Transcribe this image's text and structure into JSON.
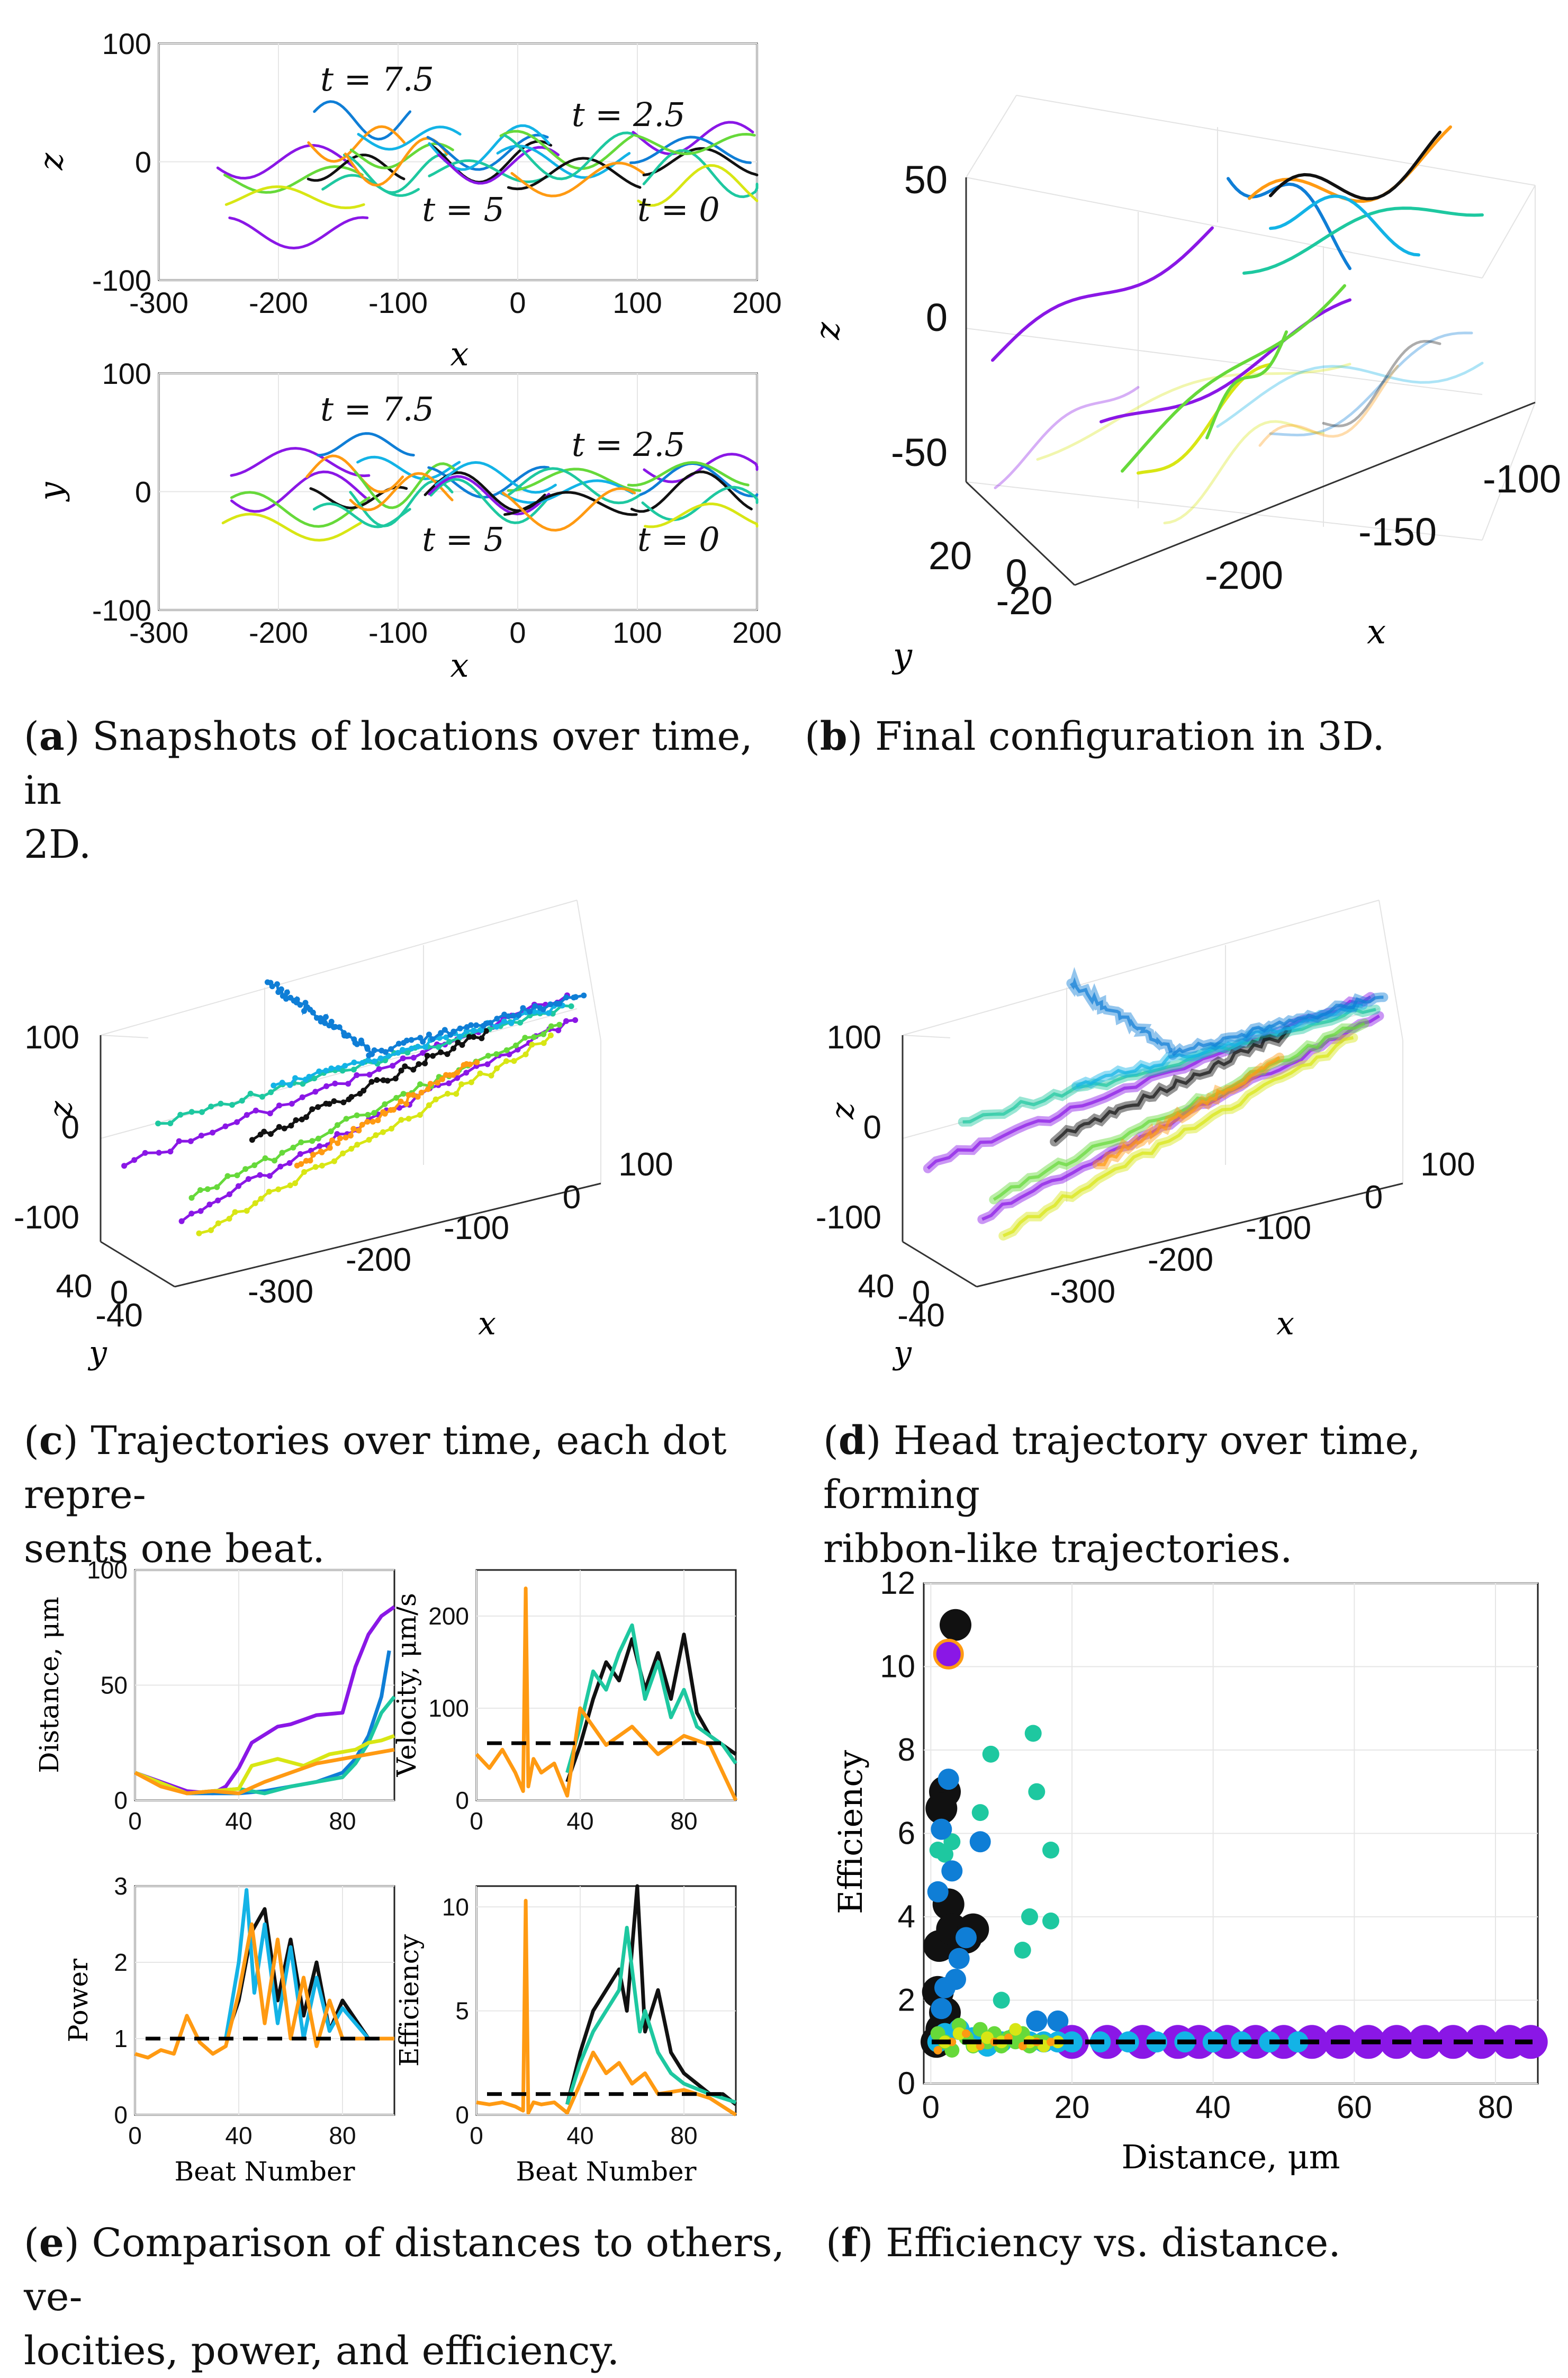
{
  "colors": {
    "purple": "#8a17e6",
    "blue": "#0f7ed6",
    "cyan": "#13b3e6",
    "teal": "#1ec8a0",
    "green": "#66d93a",
    "yellow": "#d8e614",
    "orange": "#ff9a12",
    "black": "#111111",
    "grid": "#e6e6e6",
    "axis": "#222222"
  },
  "captions": {
    "a": {
      "letter": "a",
      "text": "Snapshots of locations over time, in",
      "text2": "2D."
    },
    "b": {
      "letter": "b",
      "text": "Final configuration in 3D."
    },
    "c": {
      "letter": "c",
      "text": "Trajectories over time, each dot repre-",
      "text2": "sents one beat."
    },
    "d": {
      "letter": "d",
      "text": "Head trajectory over time, forming",
      "text2": "ribbon-like trajectories."
    },
    "e": {
      "letter": "e",
      "text": "Comparison of distances to others, ve-",
      "text2": "locities, power, and efficiency."
    },
    "f": {
      "letter": "f",
      "text": "Efficiency vs. distance."
    }
  },
  "chart_data": [
    {
      "id": "a_top",
      "type": "line",
      "title": "",
      "xlabel": "x",
      "ylabel": "z",
      "xlim": [
        -300,
        200
      ],
      "ylim": [
        -100,
        100
      ],
      "xticks": [
        "-300",
        "-200",
        "-100",
        "0",
        "100",
        "200"
      ],
      "yticks": [
        "-100",
        "0",
        "100"
      ],
      "annotations": [
        {
          "text": "t = 7.5",
          "x": -165,
          "y": 70
        },
        {
          "text": "t = 2.5",
          "x": 45,
          "y": 40
        },
        {
          "text": "t = 5",
          "x": -80,
          "y": -40
        },
        {
          "text": "t = 0",
          "x": 100,
          "y": -40
        }
      ]
    },
    {
      "id": "a_bottom",
      "type": "line",
      "title": "",
      "xlabel": "x",
      "ylabel": "y",
      "xlim": [
        -300,
        200
      ],
      "ylim": [
        -100,
        100
      ],
      "xticks": [
        "-300",
        "-200",
        "-100",
        "0",
        "100",
        "200"
      ],
      "yticks": [
        "-100",
        "0",
        "100"
      ],
      "annotations": [
        {
          "text": "t = 7.5",
          "x": -165,
          "y": 70
        },
        {
          "text": "t = 2.5",
          "x": 45,
          "y": 40
        },
        {
          "text": "t = 5",
          "x": -80,
          "y": -40
        },
        {
          "text": "t = 0",
          "x": 100,
          "y": -40
        }
      ]
    },
    {
      "id": "b",
      "type": "line",
      "title": "",
      "xlabel": "x",
      "ylabel": "z",
      "y2label": "y",
      "xticks": [
        "-200",
        "-150",
        "-100"
      ],
      "zticks": [
        "50",
        "0",
        "-50"
      ],
      "yticks": [
        "20",
        "0",
        "-20"
      ]
    },
    {
      "id": "c",
      "type": "scatter",
      "title": "",
      "xlabel": "x",
      "ylabel": "z",
      "y2label": "y",
      "xticks": [
        "-300",
        "-200",
        "-100",
        "0",
        "100"
      ],
      "zticks": [
        "100",
        "0",
        "-100"
      ],
      "yticks": [
        "40",
        "0",
        "-40"
      ]
    },
    {
      "id": "d",
      "type": "line",
      "title": "",
      "xlabel": "x",
      "ylabel": "z",
      "y2label": "y",
      "xticks": [
        "-300",
        "-200",
        "-100",
        "0",
        "100"
      ],
      "zticks": [
        "100",
        "0",
        "-100"
      ],
      "yticks": [
        "40",
        "0",
        "-40"
      ]
    },
    {
      "id": "e_distance",
      "type": "line",
      "title": "",
      "xlabel": "",
      "ylabel": "Distance, μm",
      "xlim": [
        0,
        100
      ],
      "ylim": [
        0,
        100
      ],
      "xticks": [
        "0",
        "40",
        "80"
      ],
      "yticks": [
        "0",
        "50",
        "100"
      ],
      "series": [
        {
          "name": "purple",
          "x": [
            0,
            10,
            20,
            30,
            35,
            40,
            45,
            55,
            60,
            70,
            80,
            85,
            90,
            95,
            100
          ],
          "y": [
            12,
            8,
            4,
            3,
            6,
            14,
            25,
            32,
            33,
            37,
            38,
            58,
            72,
            80,
            84
          ]
        },
        {
          "name": "blue",
          "x": [
            0,
            20,
            40,
            50,
            60,
            70,
            80,
            85,
            90,
            95,
            98
          ],
          "y": [
            12,
            3,
            3,
            4,
            6,
            8,
            12,
            18,
            28,
            45,
            65
          ]
        },
        {
          "name": "teal",
          "x": [
            0,
            20,
            40,
            50,
            60,
            70,
            80,
            85,
            90,
            95,
            100
          ],
          "y": [
            12,
            3,
            5,
            3,
            6,
            8,
            10,
            16,
            25,
            38,
            45
          ]
        },
        {
          "name": "yellow",
          "x": [
            0,
            20,
            40,
            45,
            55,
            65,
            75,
            85,
            90,
            95,
            100
          ],
          "y": [
            12,
            3,
            5,
            15,
            18,
            15,
            20,
            22,
            25,
            26,
            28
          ]
        },
        {
          "name": "orange",
          "x": [
            0,
            10,
            20,
            30,
            40,
            50,
            60,
            70,
            80,
            90,
            100
          ],
          "y": [
            12,
            6,
            3,
            4,
            3,
            8,
            12,
            16,
            18,
            20,
            22
          ]
        }
      ],
      "reference_line": null
    },
    {
      "id": "e_velocity",
      "type": "line",
      "title": "",
      "xlabel": "",
      "ylabel": "Velocity, μm/s",
      "xlim": [
        0,
        100
      ],
      "ylim": [
        0,
        250
      ],
      "xticks": [
        "0",
        "40",
        "80"
      ],
      "yticks": [
        "0",
        "100",
        "200"
      ],
      "reference_line": 62,
      "series": [
        {
          "name": "black",
          "x": [
            35,
            40,
            45,
            50,
            55,
            60,
            65,
            70,
            75,
            80,
            85,
            90,
            95,
            100
          ],
          "y": [
            20,
            60,
            110,
            150,
            130,
            175,
            120,
            160,
            110,
            180,
            95,
            70,
            60,
            50
          ]
        },
        {
          "name": "teal",
          "x": [
            35,
            40,
            45,
            50,
            55,
            60,
            65,
            70,
            75,
            80,
            85,
            90,
            95,
            100
          ],
          "y": [
            30,
            80,
            140,
            120,
            160,
            190,
            110,
            150,
            90,
            120,
            80,
            70,
            60,
            40
          ]
        },
        {
          "name": "orange",
          "x": [
            0,
            5,
            10,
            15,
            18,
            19,
            20,
            22,
            25,
            30,
            35,
            40,
            50,
            60,
            70,
            80,
            90,
            100
          ],
          "y": [
            50,
            35,
            55,
            30,
            10,
            230,
            15,
            45,
            30,
            40,
            5,
            100,
            60,
            80,
            50,
            70,
            60,
            0
          ]
        }
      ]
    },
    {
      "id": "e_power",
      "type": "line",
      "title": "",
      "xlabel": "Beat Number",
      "ylabel": "Power",
      "xlim": [
        0,
        100
      ],
      "ylim": [
        0,
        3
      ],
      "xticks": [
        "0",
        "40",
        "80"
      ],
      "yticks": [
        "0",
        "1",
        "2",
        "3"
      ],
      "reference_line": 1,
      "series": [
        {
          "name": "black",
          "x": [
            35,
            40,
            45,
            50,
            55,
            60,
            65,
            70,
            75,
            80,
            90,
            100
          ],
          "y": [
            1,
            1.5,
            2.4,
            2.7,
            1.5,
            2.3,
            1.3,
            2.0,
            1.1,
            1.5,
            1.0,
            1.0
          ]
        },
        {
          "name": "cyan",
          "x": [
            35,
            40,
            43,
            46,
            50,
            55,
            60,
            65,
            70,
            75,
            80,
            90,
            100
          ],
          "y": [
            1,
            2.0,
            2.95,
            1.6,
            2.5,
            1.2,
            2.2,
            1.0,
            1.8,
            1.1,
            1.4,
            1.0,
            1.0
          ]
        },
        {
          "name": "orange",
          "x": [
            0,
            5,
            10,
            15,
            20,
            25,
            30,
            35,
            40,
            45,
            50,
            55,
            60,
            65,
            70,
            75,
            80,
            90,
            100
          ],
          "y": [
            0.8,
            0.75,
            0.85,
            0.8,
            1.3,
            0.95,
            0.8,
            0.9,
            1.6,
            2.5,
            1.2,
            2.3,
            1.0,
            1.8,
            0.9,
            1.5,
            1.0,
            1.0,
            1.0
          ]
        }
      ]
    },
    {
      "id": "e_efficiency",
      "type": "line",
      "title": "",
      "xlabel": "Beat Number",
      "ylabel": "Efficiency",
      "xlim": [
        0,
        100
      ],
      "ylim": [
        0,
        11
      ],
      "xticks": [
        "0",
        "40",
        "80"
      ],
      "yticks": [
        "0",
        "5",
        "10"
      ],
      "reference_line": 1,
      "series": [
        {
          "name": "black",
          "x": [
            35,
            40,
            45,
            50,
            55,
            58,
            60,
            62,
            65,
            70,
            75,
            80,
            85,
            90,
            95,
            100
          ],
          "y": [
            0.5,
            3,
            5,
            6,
            7,
            5,
            8,
            11,
            4,
            6,
            3,
            2,
            1.5,
            1,
            1,
            0.5
          ]
        },
        {
          "name": "teal",
          "x": [
            35,
            40,
            45,
            50,
            55,
            58,
            60,
            63,
            65,
            70,
            75,
            80,
            90,
            100
          ],
          "y": [
            0.5,
            2.5,
            4,
            5,
            6,
            9,
            7,
            4,
            5,
            3,
            2,
            1.5,
            1,
            0.6
          ]
        },
        {
          "name": "orange",
          "x": [
            0,
            5,
            10,
            15,
            18,
            19,
            20,
            22,
            25,
            30,
            35,
            40,
            45,
            50,
            55,
            60,
            65,
            70,
            80,
            90,
            100
          ],
          "y": [
            0.6,
            0.5,
            0.6,
            0.4,
            0.2,
            10.3,
            0.1,
            0.6,
            0.5,
            0.6,
            0.1,
            1.5,
            3,
            2,
            2.5,
            1.5,
            2,
            1,
            1.2,
            0.8,
            0
          ]
        }
      ]
    },
    {
      "id": "f",
      "type": "scatter",
      "title": "",
      "xlabel": "Distance, μm",
      "ylabel": "Efficiency",
      "xlim": [
        -1,
        86
      ],
      "ylim": [
        0,
        12
      ],
      "xticks": [
        "0",
        "20",
        "40",
        "60",
        "80"
      ],
      "yticks": [
        "0",
        "2",
        "4",
        "6",
        "8",
        "10",
        "12"
      ],
      "reference_line": 1,
      "series": [
        {
          "name": "black",
          "x": [
            3.5,
            2,
            1.5,
            2.5,
            1.2,
            3,
            1,
            2,
            1.5,
            0.8,
            5,
            6
          ],
          "y": [
            11,
            7,
            6.6,
            4.3,
            3.3,
            3.7,
            2.2,
            1.7,
            1.3,
            1.0,
            3.5,
            3.7
          ]
        },
        {
          "name": "teal",
          "x": [
            14.5,
            15,
            17,
            14,
            17,
            13,
            10,
            8.5,
            7,
            3,
            1,
            2
          ],
          "y": [
            8.4,
            7.0,
            5.6,
            4.0,
            3.9,
            3.2,
            2.0,
            7.9,
            6.5,
            5.8,
            5.6,
            5.5
          ]
        },
        {
          "name": "blue",
          "x": [
            2.5,
            1.5,
            3,
            7,
            1,
            5,
            4,
            3.5,
            2,
            1.5,
            15,
            18
          ],
          "y": [
            7.3,
            6.1,
            5.1,
            5.8,
            4.6,
            3.5,
            3.0,
            2.5,
            2.3,
            1.8,
            1.5,
            1.5
          ]
        },
        {
          "name": "purple",
          "x": [
            2.5,
            20,
            25,
            30,
            35,
            38,
            42,
            46,
            50,
            54,
            58,
            62,
            66,
            70,
            74,
            78,
            82,
            85
          ],
          "y": [
            10.3,
            1,
            1,
            1,
            1,
            1,
            1,
            1,
            1,
            1,
            1,
            1,
            1,
            1,
            1,
            1,
            1,
            1
          ]
        },
        {
          "name": "cyan",
          "x": [
            1,
            2,
            4,
            6,
            8,
            10,
            12,
            14,
            16,
            18,
            20,
            24,
            28,
            32,
            36,
            40,
            44,
            48,
            52
          ],
          "y": [
            1,
            1.2,
            1.3,
            1.1,
            0.9,
            1.0,
            1.1,
            1.0,
            1.0,
            1.0,
            1.0,
            1.0,
            1.0,
            1.0,
            1.0,
            1.0,
            1.0,
            1.0,
            1.0
          ]
        },
        {
          "name": "green",
          "x": [
            1,
            2,
            3,
            4,
            5,
            6,
            7,
            8,
            9,
            10,
            11,
            12,
            13,
            14,
            15,
            16
          ],
          "y": [
            1.2,
            1.0,
            0.8,
            1.4,
            1.1,
            0.9,
            1.3,
            1.0,
            1.2,
            0.9,
            1.1,
            1.0,
            1.2,
            0.9,
            1.0,
            1.0
          ]
        },
        {
          "name": "yellow",
          "x": [
            2,
            4,
            6,
            8,
            10,
            12,
            14,
            16,
            18
          ],
          "y": [
            1.0,
            1.2,
            0.9,
            1.1,
            1.0,
            1.3,
            1.0,
            0.9,
            1.0
          ]
        },
        {
          "name": "orange",
          "x": [
            1,
            3,
            5,
            7,
            9,
            11,
            13,
            15,
            17
          ],
          "y": [
            0.8,
            1.0,
            1.2,
            0.9,
            1.0,
            1.1,
            0.9,
            1.0,
            1.0
          ]
        }
      ]
    }
  ]
}
